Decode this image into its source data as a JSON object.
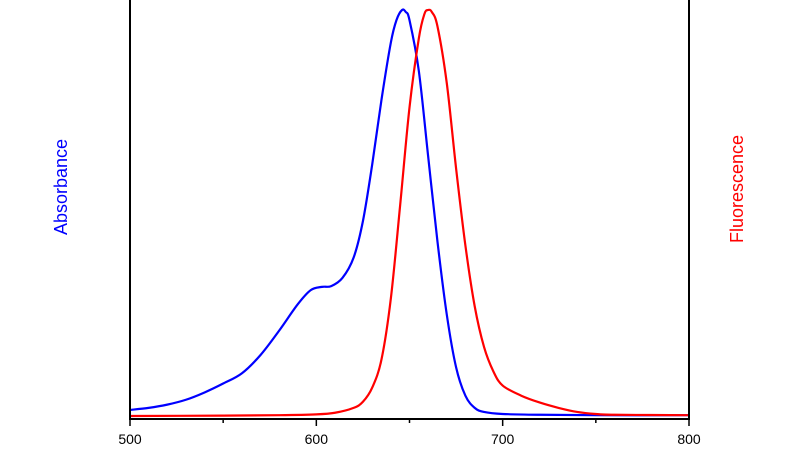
{
  "chart_data": {
    "type": "line",
    "title": "",
    "xlabel": "",
    "xlim": [
      500,
      800
    ],
    "x_ticks": [
      500,
      600,
      700,
      800
    ],
    "x_tick_labels": [
      "500",
      "600",
      "700",
      "800"
    ],
    "ylim": [
      0,
      1
    ],
    "grid": false,
    "y_left_label": "Absorbance",
    "y_right_label": "Fluorescence",
    "y_left_color": "#0000ff",
    "y_right_color": "#ff0000",
    "series": [
      {
        "name": "Absorbance",
        "axis": "left",
        "color": "#0000ff",
        "points": [
          [
            500,
            0.015
          ],
          [
            510,
            0.02
          ],
          [
            520,
            0.028
          ],
          [
            530,
            0.04
          ],
          [
            540,
            0.058
          ],
          [
            550,
            0.08
          ],
          [
            560,
            0.105
          ],
          [
            570,
            0.15
          ],
          [
            580,
            0.21
          ],
          [
            590,
            0.275
          ],
          [
            597,
            0.31
          ],
          [
            603,
            0.318
          ],
          [
            608,
            0.32
          ],
          [
            614,
            0.34
          ],
          [
            620,
            0.39
          ],
          [
            625,
            0.48
          ],
          [
            630,
            0.62
          ],
          [
            635,
            0.78
          ],
          [
            640,
            0.92
          ],
          [
            643,
            0.975
          ],
          [
            646,
            1.0
          ],
          [
            648,
            0.995
          ],
          [
            650,
            0.975
          ],
          [
            655,
            0.85
          ],
          [
            660,
            0.64
          ],
          [
            665,
            0.43
          ],
          [
            670,
            0.25
          ],
          [
            675,
            0.12
          ],
          [
            680,
            0.05
          ],
          [
            685,
            0.02
          ],
          [
            690,
            0.01
          ],
          [
            700,
            0.005
          ],
          [
            720,
            0.003
          ],
          [
            750,
            0.002
          ],
          [
            800,
            0.002
          ]
        ]
      },
      {
        "name": "Fluorescence",
        "axis": "right",
        "color": "#ff0000",
        "points": [
          [
            500,
            0.0
          ],
          [
            550,
            0.001
          ],
          [
            580,
            0.002
          ],
          [
            600,
            0.004
          ],
          [
            610,
            0.008
          ],
          [
            620,
            0.02
          ],
          [
            625,
            0.035
          ],
          [
            630,
            0.07
          ],
          [
            635,
            0.14
          ],
          [
            640,
            0.29
          ],
          [
            645,
            0.52
          ],
          [
            650,
            0.76
          ],
          [
            655,
            0.93
          ],
          [
            658,
            0.99
          ],
          [
            660,
            1.0
          ],
          [
            662,
            0.995
          ],
          [
            665,
            0.96
          ],
          [
            670,
            0.82
          ],
          [
            675,
            0.61
          ],
          [
            680,
            0.42
          ],
          [
            685,
            0.27
          ],
          [
            690,
            0.17
          ],
          [
            695,
            0.11
          ],
          [
            700,
            0.075
          ],
          [
            710,
            0.05
          ],
          [
            720,
            0.033
          ],
          [
            730,
            0.02
          ],
          [
            740,
            0.01
          ],
          [
            750,
            0.005
          ],
          [
            760,
            0.003
          ],
          [
            800,
            0.002
          ]
        ]
      }
    ]
  }
}
